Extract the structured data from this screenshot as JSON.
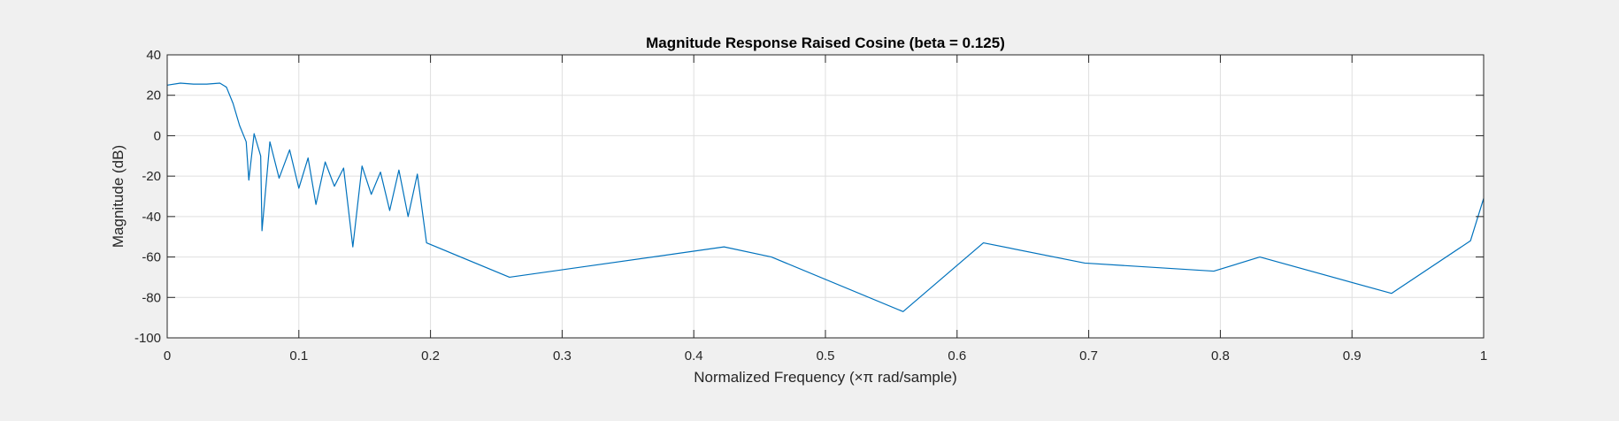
{
  "chart_data": {
    "type": "line",
    "title": "Magnitude Response Raised Cosine (beta = 0.125)",
    "xlabel": "Normalized Frequency  (×π rad/sample)",
    "ylabel": "Magnitude (dB)",
    "xlim": [
      0,
      1
    ],
    "ylim": [
      -100,
      40
    ],
    "xticks": [
      0,
      0.1,
      0.2,
      0.3,
      0.4,
      0.5,
      0.6,
      0.7,
      0.8,
      0.9,
      1
    ],
    "xtick_labels": [
      "0",
      "0.1",
      "0.2",
      "0.3",
      "0.4",
      "0.5",
      "0.6",
      "0.7",
      "0.8",
      "0.9",
      "1"
    ],
    "yticks": [
      40,
      20,
      0,
      -20,
      -40,
      -60,
      -80,
      -100
    ],
    "ytick_labels": [
      "40",
      "20",
      "0",
      "-20",
      "-40",
      "-60",
      "-80",
      "-100"
    ],
    "grid": true,
    "line_color": "#0072bd",
    "series": [
      {
        "x": [
          0,
          0.01,
          0.02,
          0.03,
          0.04,
          0.045,
          0.05,
          0.055,
          0.06,
          0.062,
          0.066,
          0.071,
          0.072,
          0.078,
          0.085,
          0.093,
          0.1,
          0.107,
          0.113,
          0.12,
          0.127,
          0.134,
          0.141,
          0.148,
          0.155,
          0.162,
          0.169,
          0.176,
          0.183,
          0.19,
          0.197,
          0.26,
          0.423,
          0.459,
          0.559,
          0.62,
          0.697,
          0.795,
          0.83,
          0.93,
          0.99,
          1.0
        ],
        "y": [
          25,
          26,
          25.5,
          25.5,
          26,
          24,
          16,
          5,
          -3,
          -22,
          1,
          -10,
          -47,
          -3,
          -21,
          -7,
          -26,
          -11,
          -34,
          -13,
          -25,
          -16,
          -55,
          -15,
          -29,
          -18,
          -37,
          -17,
          -40,
          -19,
          -53,
          -70,
          -55,
          -60,
          -87,
          -53,
          -63,
          -67,
          -60,
          -78,
          -52,
          -31
        ]
      }
    ]
  }
}
